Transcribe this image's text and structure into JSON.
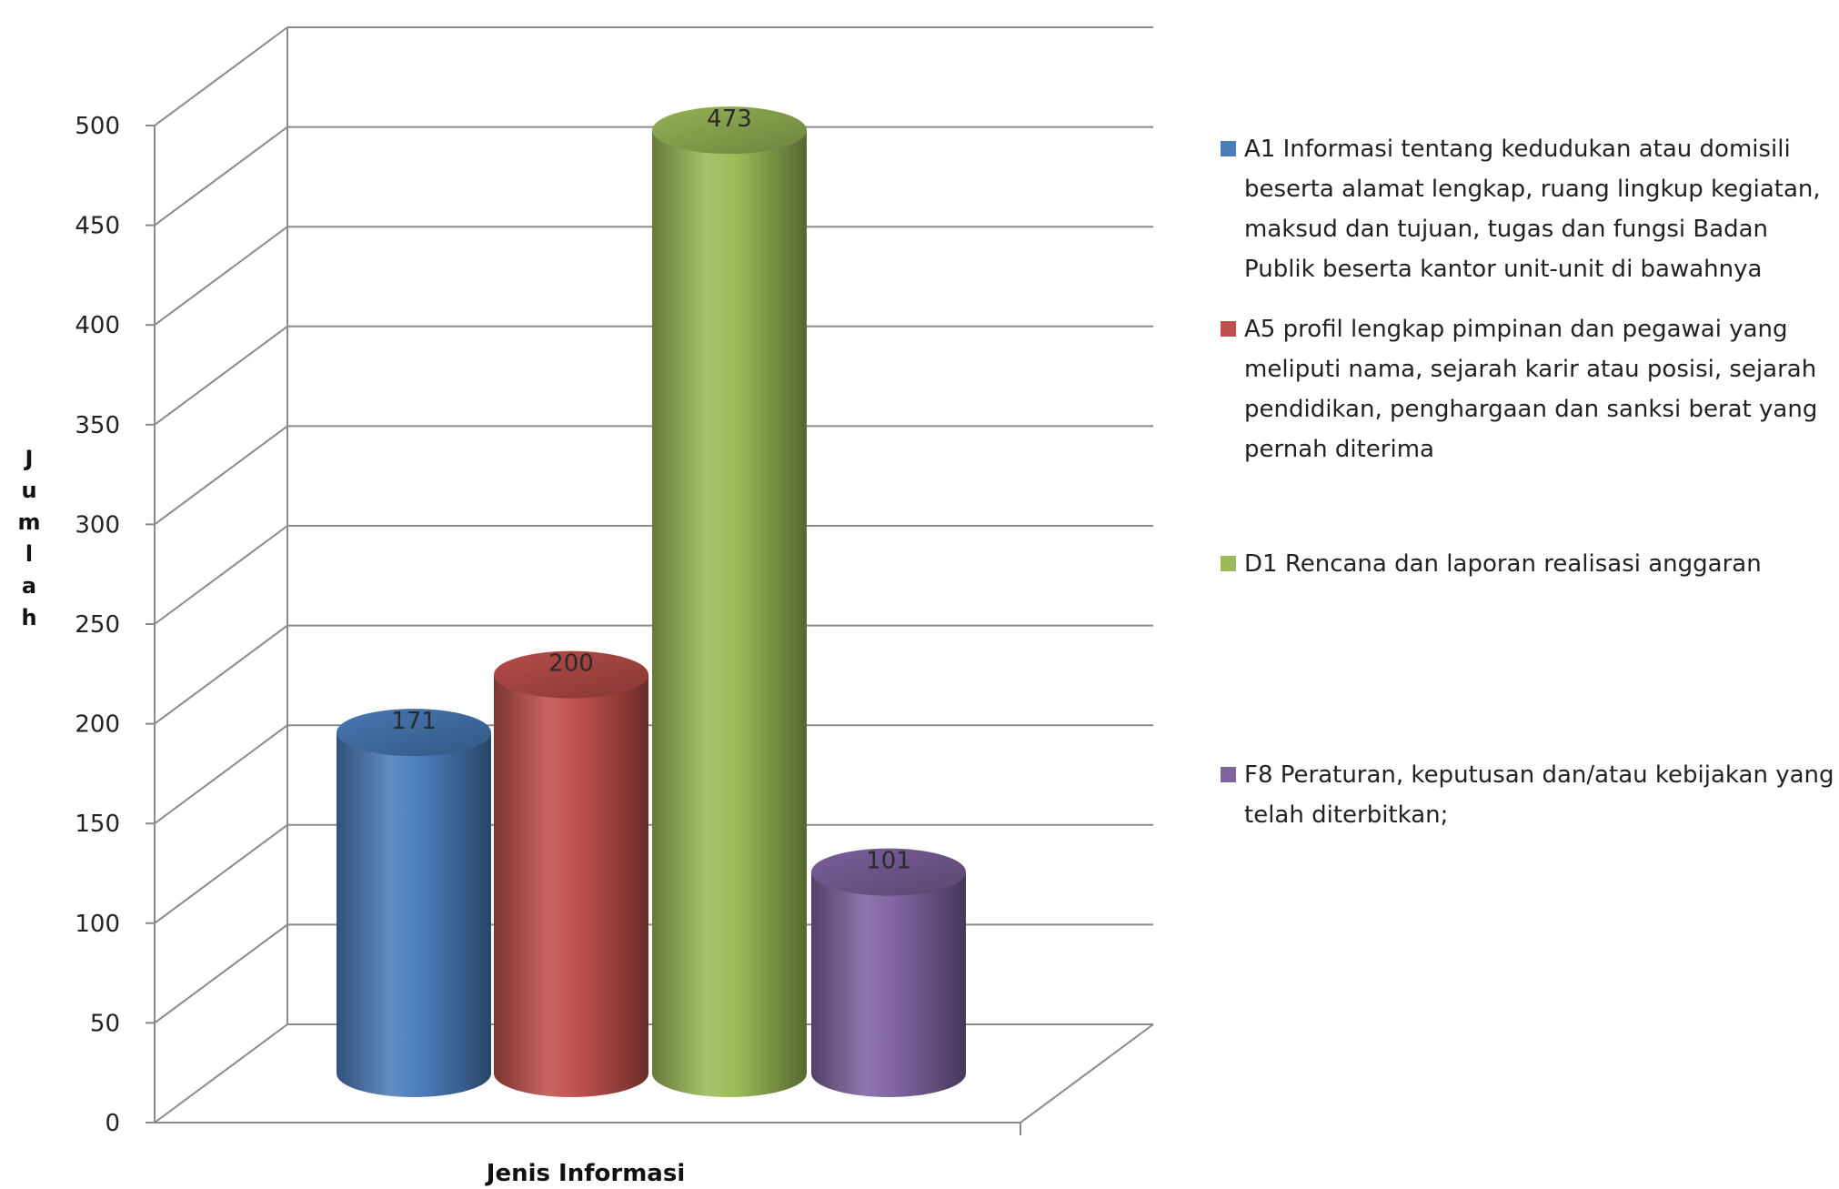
{
  "chart_data": {
    "type": "bar",
    "style": "3d-cylinder",
    "categories": [
      "A1 Informasi tentang kedudukan atau domisili beserta alamat  lengkap, ruang lingkup kegiatan,  maksud dan tujuan, tugas dan fungsi Badan Publik beserta kantor unit-unit di bawahnya",
      "A5 profil lengkap pimpinan dan pegawai yang meliputi nama, sejarah karir atau posisi, sejarah pendidikan, penghargaan dan sanksi berat yang pernah diterima",
      "D1 Rencana dan laporan realisasi anggaran",
      "F8 Peraturan, keputusan dan/atau  kebijakan yang telah diterbitkan;"
    ],
    "values": [
      171,
      200,
      473,
      101
    ],
    "data_labels": [
      "171",
      "200",
      "473",
      "101"
    ],
    "colors": [
      "#4a7ebb",
      "#c0504d",
      "#9bbb59",
      "#8064a2"
    ],
    "xlabel": "Jenis Informasi",
    "ylabel": "Jumlah",
    "ylim": [
      0,
      500
    ],
    "yticks": [
      "0",
      "50",
      "100",
      "150",
      "200",
      "250",
      "300",
      "350",
      "400",
      "450",
      "500"
    ],
    "grid": true,
    "legend_position": "right"
  }
}
